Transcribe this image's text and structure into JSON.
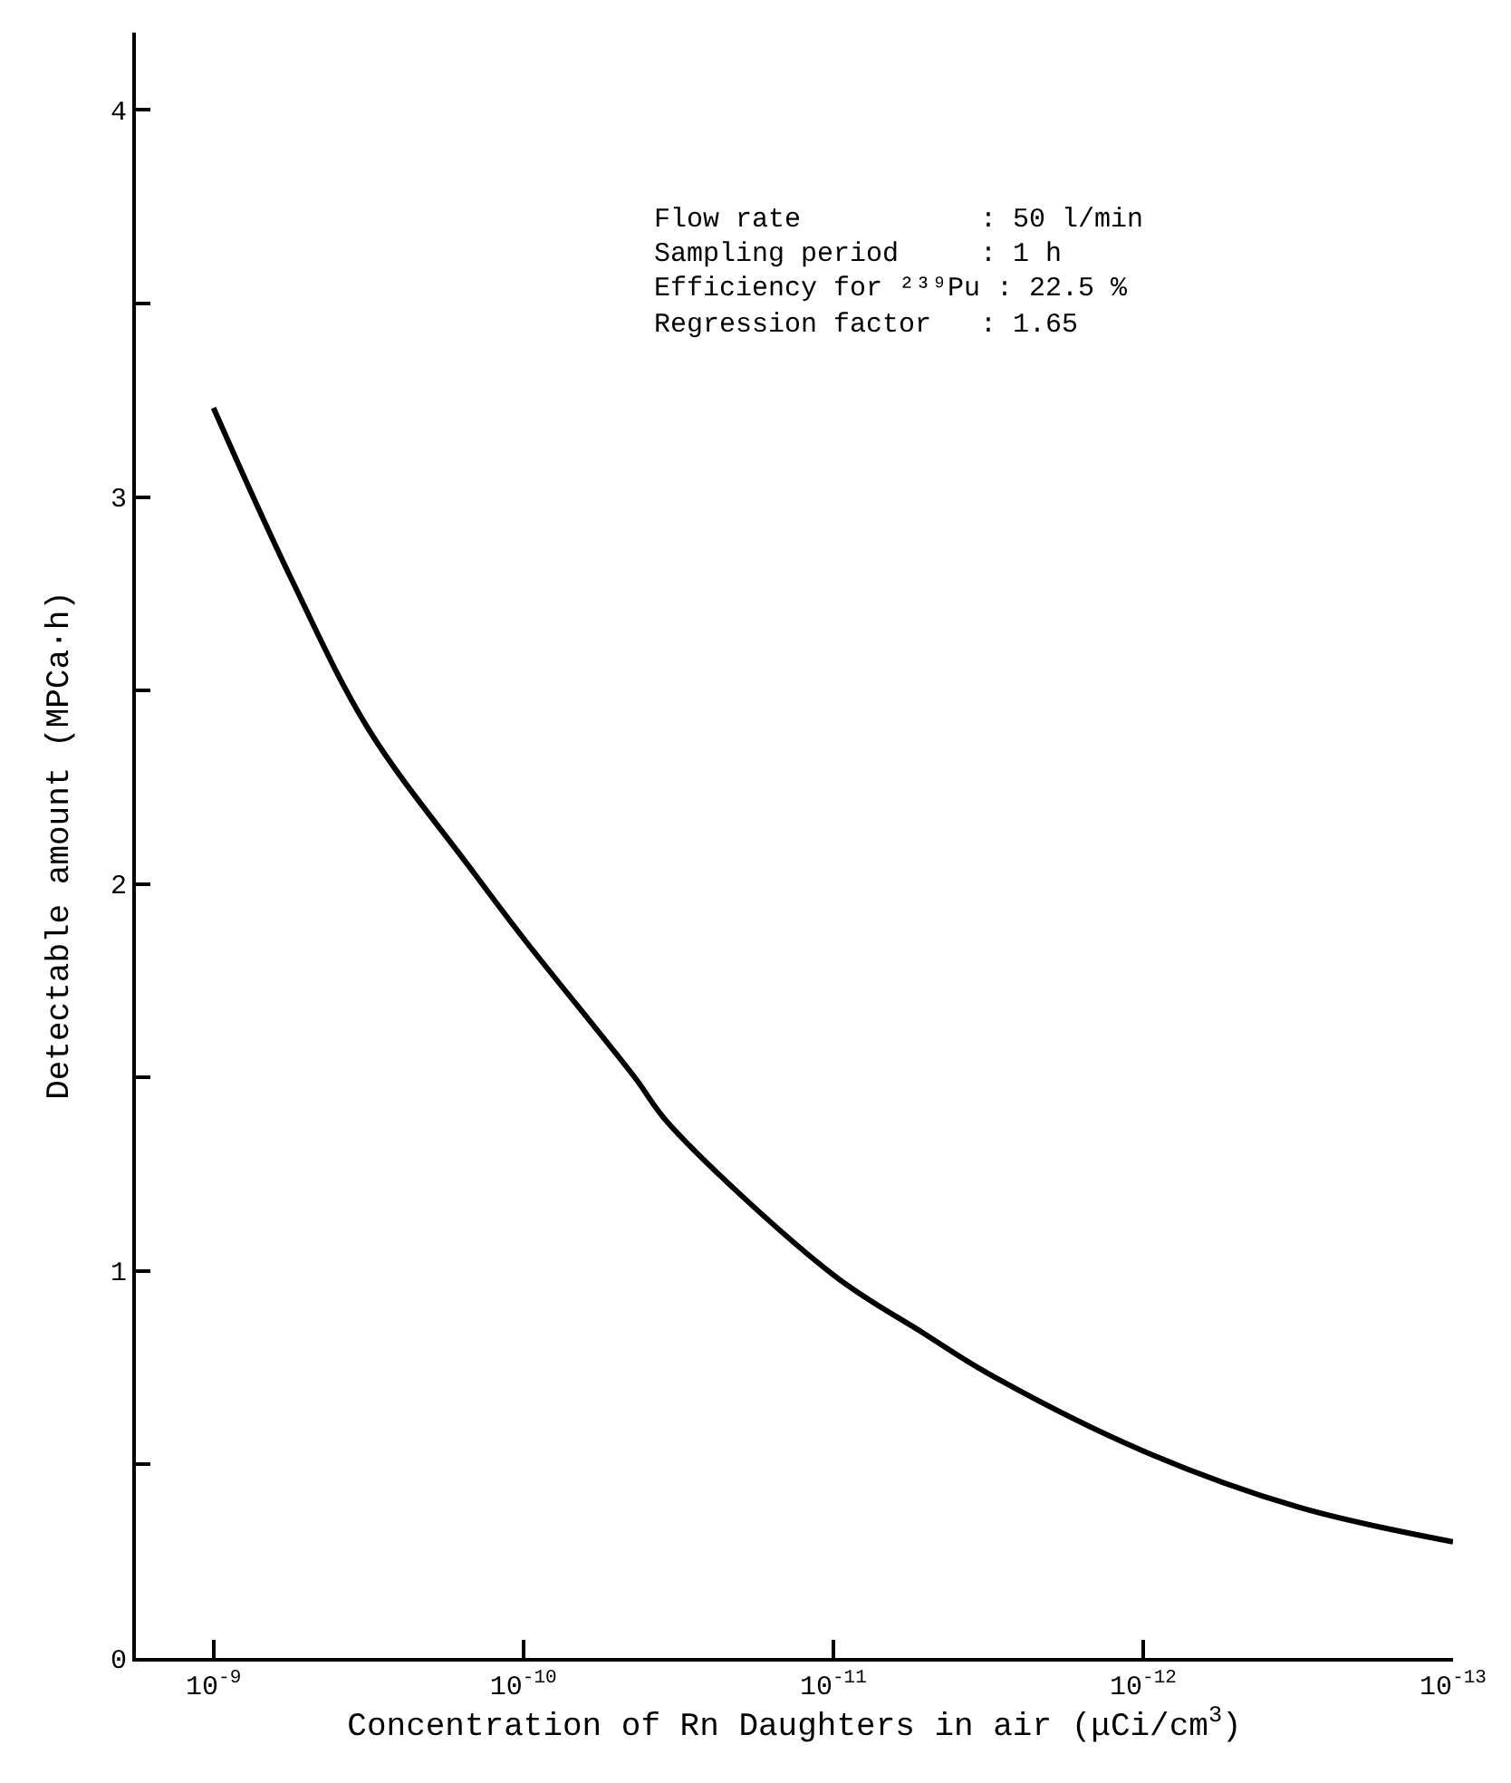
{
  "chart_data": {
    "type": "line",
    "xlabel": "Concentration of Rn Daughters in air (μCi/cm$^{3}$)",
    "ylabel": "Detectable amount (MPCa·h)",
    "x": [
      1e-09,
      5.62e-10,
      3.16e-10,
      1.48e-10,
      1e-10,
      4.37e-11,
      3.39e-11,
      1e-11,
      5.13e-12,
      3.16e-12,
      1e-12,
      3.16e-13,
      1e-13
    ],
    "series": [
      {
        "color": "#000000",
        "values": [
          3.23,
          2.79,
          2.4,
          2.04,
          1.86,
          1.5,
          1.38,
          0.99,
          0.84,
          0.735,
          0.535,
          0.39,
          0.3
        ]
      }
    ],
    "log": "x",
    "xlim": [
      1.78e-09,
      1e-13
    ],
    "xticks": [
      {
        "value": 1e-09,
        "label": "10$^{-9}$"
      },
      {
        "value": 1e-10,
        "label": "10$^{-10}$"
      },
      {
        "value": 1e-11,
        "label": "10$^{-11}$"
      },
      {
        "value": 1e-12,
        "label": "10$^{-12}$"
      },
      {
        "value": 1e-13,
        "label": "10$^{-13}$"
      }
    ],
    "ylim": [
      0,
      4.2
    ],
    "yticks": [
      0,
      {
        "value": 0.5,
        "label": null
      },
      1,
      {
        "value": 1.5,
        "label": null
      },
      2,
      {
        "value": 2.5,
        "label": null
      },
      3,
      {
        "value": 3.5,
        "label": null
      },
      4
    ],
    "marker": "none",
    "line_style": "solid",
    "annotations": [
      "Flow rate           : 50 l/min",
      "Sampling period     : 1 h",
      "Efficiency for ²³⁹Pu : 22.5 %",
      "Regression factor   : 1.65"
    ]
  }
}
